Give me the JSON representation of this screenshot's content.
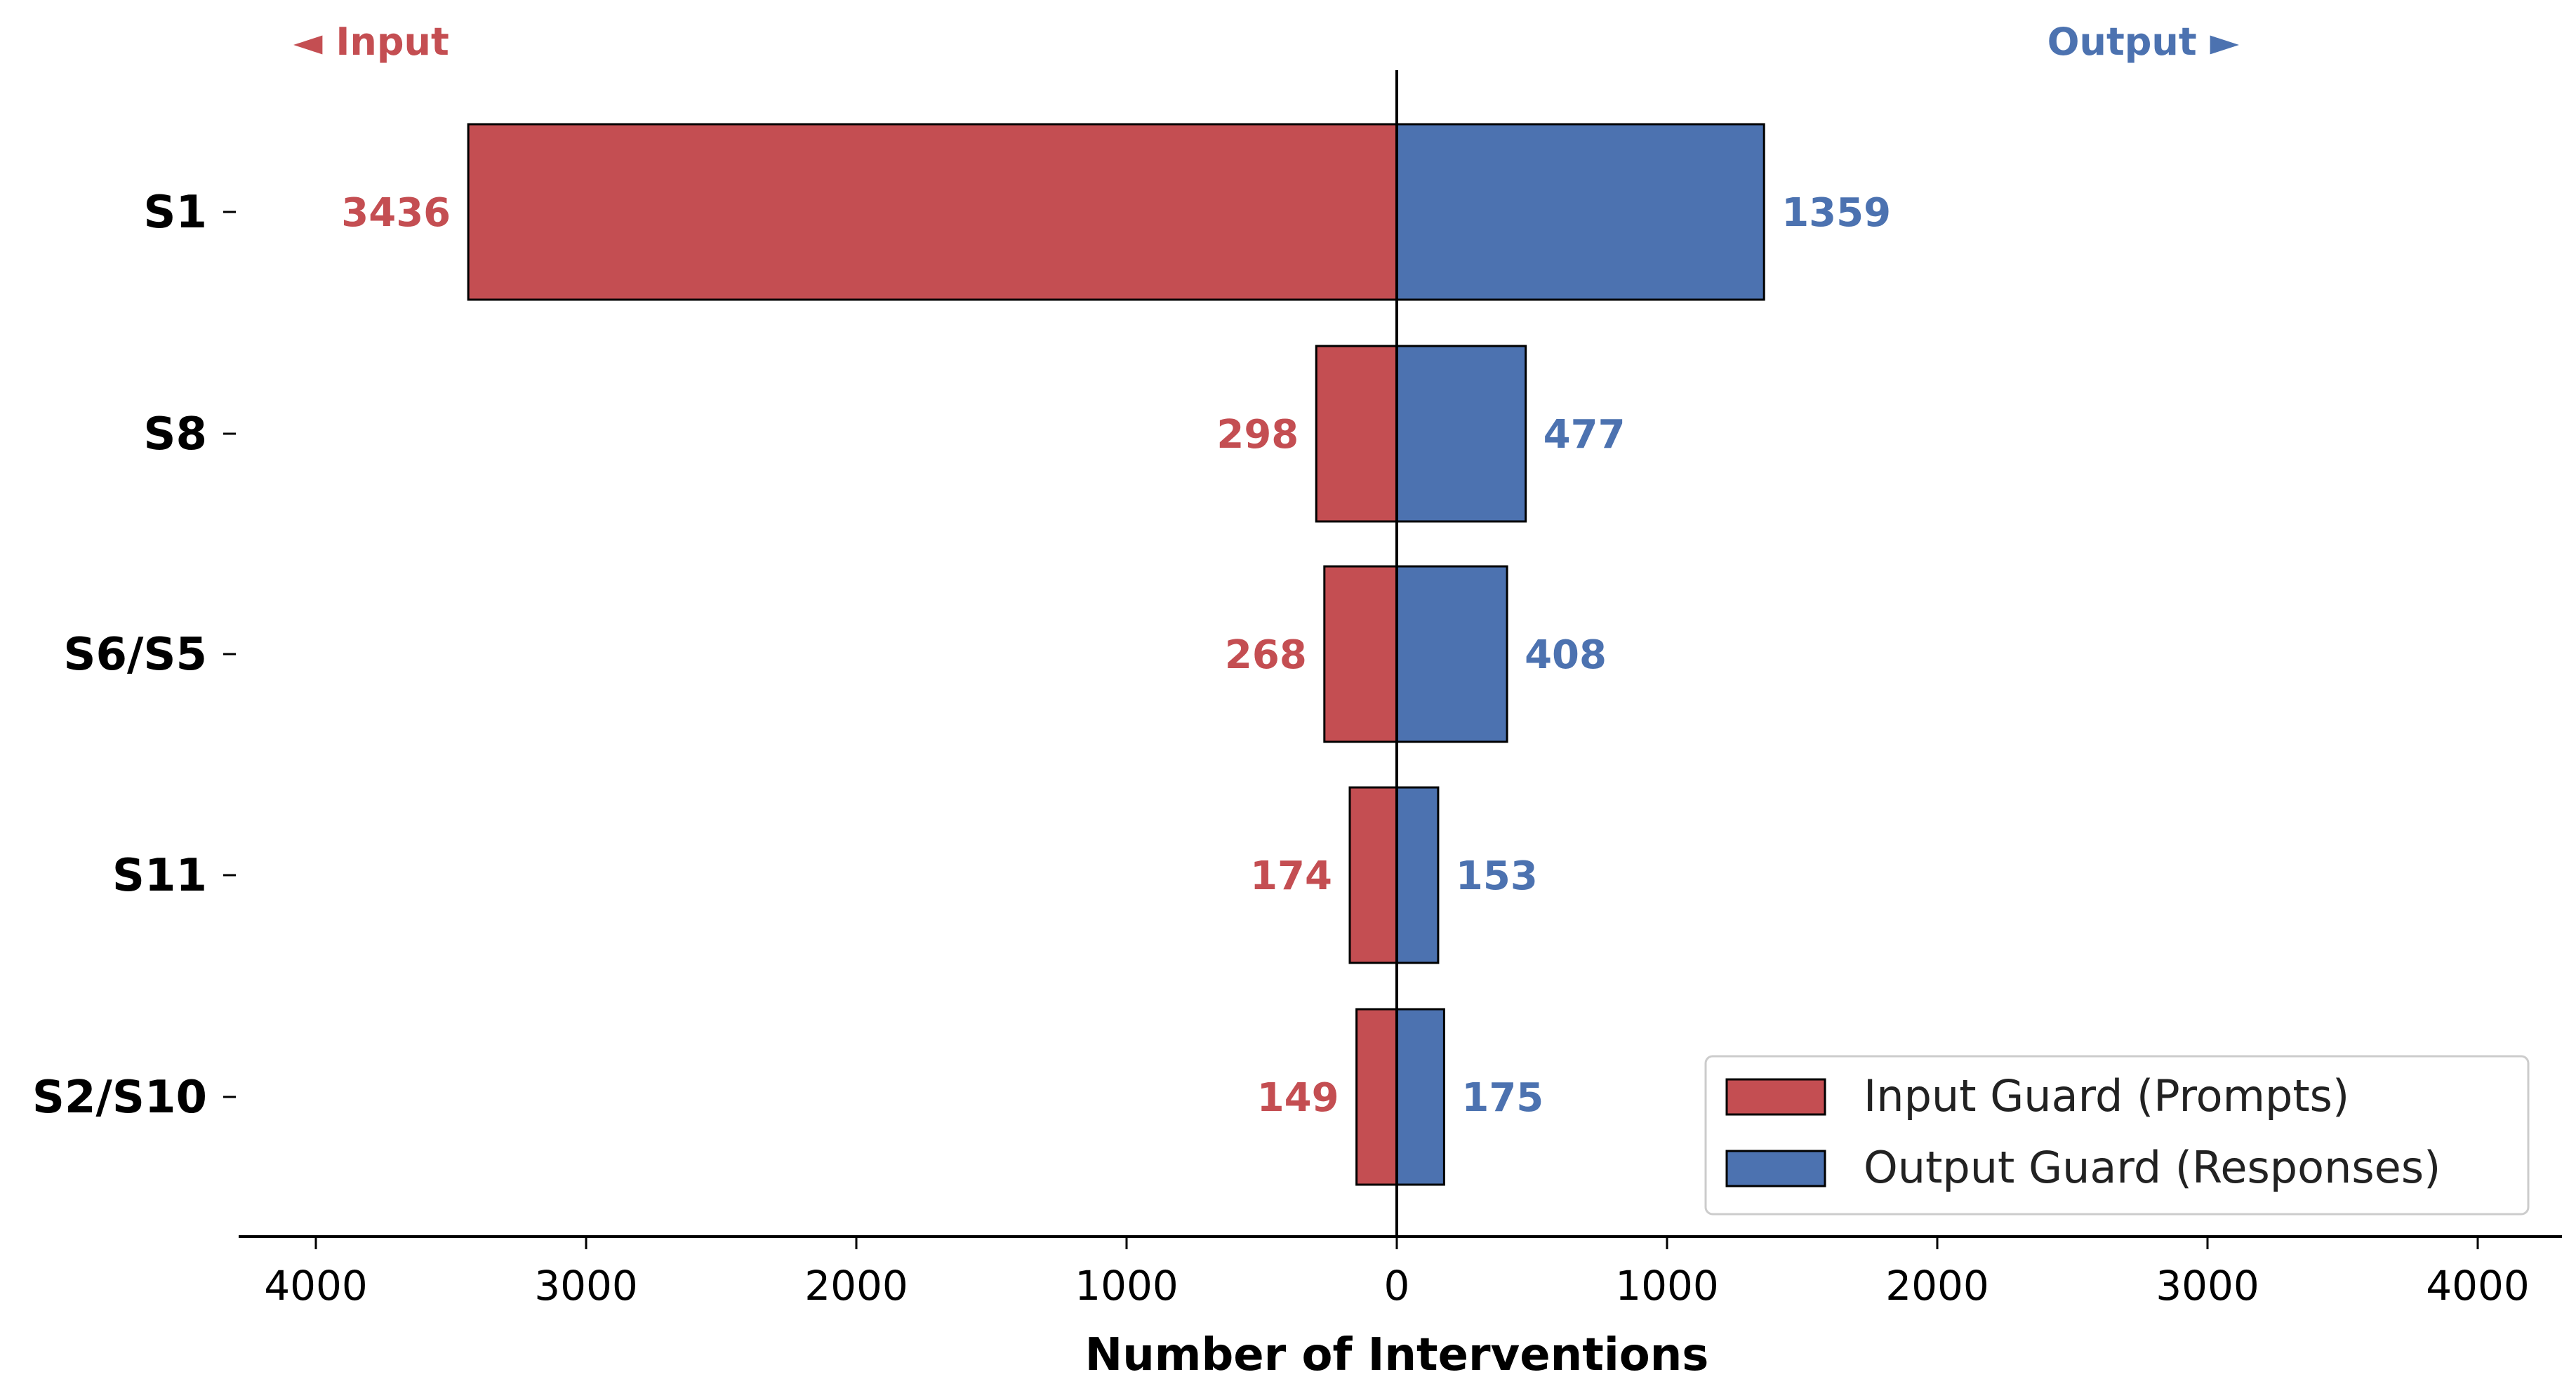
{
  "chart_data": {
    "type": "bar",
    "orientation": "horizontal-diverging",
    "categories": [
      "S1",
      "S8",
      "S6/S5",
      "S11",
      "S2/S10"
    ],
    "series": [
      {
        "name": "Input Guard (Prompts)",
        "side": "left",
        "color": "#c44e52",
        "values": [
          3436,
          298,
          268,
          174,
          149
        ]
      },
      {
        "name": "Output Guard (Responses)",
        "side": "right",
        "color": "#4c72b0",
        "values": [
          1359,
          477,
          408,
          153,
          175
        ]
      }
    ],
    "xlabel": "Number of Interventions",
    "ylabel": "",
    "xlim": [
      -4300,
      4300
    ],
    "xticks": [
      -4000,
      -3000,
      -2000,
      -1000,
      0,
      1000,
      2000,
      3000,
      4000
    ],
    "xtick_labels": [
      "4000",
      "3000",
      "2000",
      "1000",
      "0",
      "1000",
      "2000",
      "3000",
      "4000"
    ],
    "direction_labels": {
      "left": "◄ Input",
      "right": "Output ►"
    },
    "legend_position": "lower-right",
    "grid": false
  }
}
